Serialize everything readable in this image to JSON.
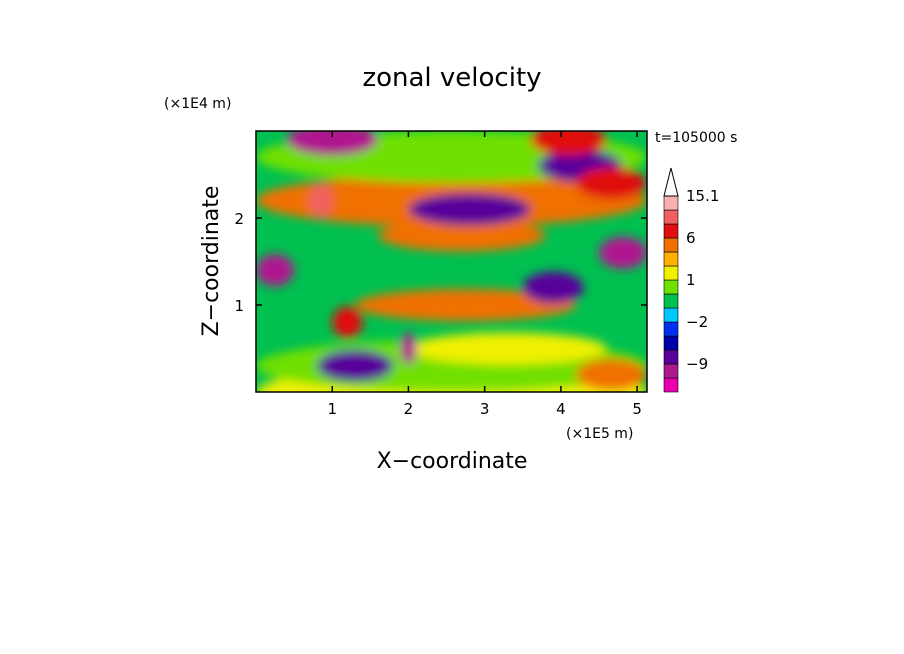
{
  "chart_data": {
    "type": "heatmap",
    "title": "zonal velocity",
    "xlabel": "X−coordinate",
    "ylabel": "Z−coordinate",
    "x_unit": "(×1E5 m)",
    "y_unit": "(×1E4 m)",
    "time_label": "t=105000 s",
    "x_ticks": [
      "1",
      "2",
      "3",
      "4",
      "5"
    ],
    "y_ticks": [
      "1",
      "2"
    ],
    "xlim": [
      0,
      5.13
    ],
    "ylim": [
      0,
      3.0
    ],
    "colorbar": {
      "labels": [
        "15.1",
        "6",
        "1",
        "−2",
        "−9"
      ],
      "levels": [
        -15,
        -12,
        -9,
        -6,
        -3,
        -2,
        -1,
        0,
        1,
        2,
        3,
        6,
        9,
        12,
        15.1
      ],
      "colors": [
        "#e800b0",
        "#b01890",
        "#58009a",
        "#0000a8",
        "#0030f0",
        "#00c8ff",
        "#00c050",
        "#70e000",
        "#f0f000",
        "#ffb000",
        "#f07000",
        "#e01010",
        "#f06060",
        "#f8b0b0"
      ],
      "extend_color": "#ffffff"
    },
    "regions": [
      {
        "z": 0.0,
        "x0": 0.0,
        "x1": 5.13,
        "v": 1.5
      },
      {
        "z": 0.3,
        "x0": 0.0,
        "x1": 5.13,
        "v": 0.5
      },
      {
        "z": 2.2,
        "x0": 0.0,
        "x1": 5.13,
        "v": 4.0
      },
      {
        "z": 2.7,
        "x0": 0.0,
        "x1": 5.13,
        "v": 0.2
      },
      {
        "z": 0.5,
        "x0": 2.0,
        "x1": 4.6,
        "v": 1.6
      },
      {
        "z": 1.0,
        "x0": 1.3,
        "x1": 4.2,
        "v": 3.5
      },
      {
        "z": 1.8,
        "x0": 1.6,
        "x1": 3.8,
        "v": 4.5
      },
      {
        "z": 2.1,
        "x0": 2.0,
        "x1": 3.6,
        "v": -8.0
      },
      {
        "z": 2.6,
        "x0": 3.7,
        "x1": 4.8,
        "v": -8.5
      },
      {
        "z": 2.4,
        "x0": 4.2,
        "x1": 5.13,
        "v": 6.5
      },
      {
        "z": 1.6,
        "x0": 4.5,
        "x1": 5.13,
        "v": -10.0
      },
      {
        "z": 1.2,
        "x0": 3.5,
        "x1": 4.3,
        "v": -7.0
      },
      {
        "z": 0.2,
        "x0": 4.2,
        "x1": 5.13,
        "v": 5.0
      },
      {
        "z": 0.3,
        "x0": 0.8,
        "x1": 1.8,
        "v": -9.0
      },
      {
        "z": 0.5,
        "x0": 1.9,
        "x1": 2.1,
        "v": -10.0
      },
      {
        "z": 1.4,
        "x0": 0.0,
        "x1": 0.5,
        "v": -12.0
      },
      {
        "z": 2.9,
        "x0": 0.4,
        "x1": 1.6,
        "v": -9.5
      },
      {
        "z": 2.9,
        "x0": 3.6,
        "x1": 4.6,
        "v": 6.0
      },
      {
        "z": 2.2,
        "x0": 0.7,
        "x1": 1.0,
        "v": 9.5
      },
      {
        "z": 0.8,
        "x0": 1.0,
        "x1": 1.4,
        "v": 7.0
      }
    ]
  }
}
